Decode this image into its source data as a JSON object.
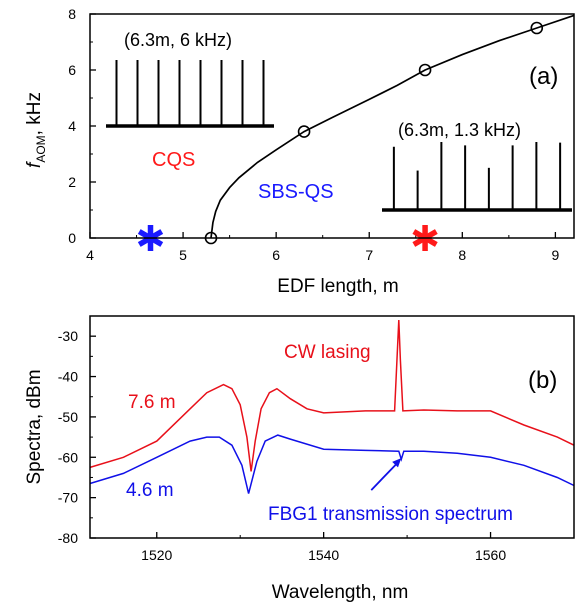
{
  "chart_data": [
    {
      "panel": "a",
      "type": "scatter",
      "panel_label": "(a)",
      "xlabel": "EDF length, m",
      "ylabel_main": "f",
      "ylabel_sub": "AOM",
      "ylabel_unit": ", kHz",
      "xlim": [
        4,
        9.2
      ],
      "ylim": [
        0,
        8
      ],
      "xticks": [
        "4",
        "5",
        "6",
        "7",
        "8",
        "9"
      ],
      "yticks": [
        "0",
        "2",
        "4",
        "6",
        "8"
      ],
      "grid": false,
      "series": [
        {
          "kind": "measured",
          "color": "#000000",
          "x": [
            5.3,
            6.3,
            7.6,
            8.8
          ],
          "y": [
            0,
            3.8,
            6.0,
            7.5
          ]
        },
        {
          "kind": "fit",
          "color": "#000000",
          "x": [
            5.3,
            5.32,
            5.35,
            5.4,
            5.5,
            5.6,
            5.8,
            6.0,
            6.3,
            6.6,
            7.0,
            7.3,
            7.6,
            8.0,
            8.4,
            8.8,
            9.2
          ],
          "y": [
            0,
            0.55,
            0.95,
            1.35,
            1.8,
            2.15,
            2.7,
            3.15,
            3.8,
            4.3,
            4.95,
            5.45,
            6.0,
            6.55,
            7.05,
            7.5,
            7.95
          ]
        }
      ],
      "markers": [
        {
          "symbol": "*",
          "color": "#1a1aff",
          "x": 4.65,
          "y": 0
        },
        {
          "symbol": "*",
          "color": "#ff1a1a",
          "x": 7.6,
          "y": 0
        }
      ],
      "annotations": [
        {
          "text": "CQS",
          "color": "#ff1a1a"
        },
        {
          "text": "SBS-QS",
          "color": "#1a1aff"
        },
        {
          "text": "(6.3m, 6 kHz)",
          "color": "#000000"
        },
        {
          "text": "(6.3m, 1.3 kHz)",
          "color": "#000000"
        }
      ],
      "inset_pulse_trains": [
        {
          "caption": "(6.3m, 6 kHz)",
          "pulse_count": 8,
          "relative_heights": [
            1,
            1,
            1,
            1,
            1,
            1,
            1,
            1
          ]
        },
        {
          "caption": "(6.3m, 1.3 kHz)",
          "pulse_count": 8,
          "relative_heights": [
            0.93,
            0.58,
            1,
            0.95,
            0.62,
            0.95,
            1,
            0.99
          ]
        }
      ]
    },
    {
      "panel": "b",
      "type": "line",
      "panel_label": "(b)",
      "xlabel": "Wavelength, nm",
      "ylabel": "Spectra, dBm",
      "xlim": [
        1512,
        1570
      ],
      "ylim": [
        -80,
        -25
      ],
      "xticks": [
        "1520",
        "1540",
        "1560"
      ],
      "yticks": [
        "-30",
        "-40",
        "-50",
        "-60",
        "-70",
        "-80"
      ],
      "grid": false,
      "series": [
        {
          "name": "7.6 m",
          "color": "#e8101a",
          "x": [
            1512,
            1516,
            1520,
            1524,
            1526,
            1528,
            1529,
            1530,
            1530.8,
            1531.3,
            1531.8,
            1532.5,
            1533.5,
            1534.4,
            1536,
            1538,
            1540,
            1545,
            1548.5,
            1549.0,
            1549.2,
            1549.5,
            1552,
            1556,
            1560,
            1564,
            1568,
            1570
          ],
          "y": [
            -62.5,
            -60,
            -56,
            -48,
            -44,
            -42,
            -43,
            -47,
            -55,
            -63.5,
            -56,
            -48,
            -44,
            -43,
            -45.5,
            -48,
            -49,
            -48.5,
            -48.5,
            -26,
            -36,
            -48.5,
            -48.3,
            -48.5,
            -48.5,
            -52,
            -55,
            -57
          ]
        },
        {
          "name": "4.6 m",
          "color": "#1010e8",
          "x": [
            1512,
            1516,
            1520,
            1524,
            1526,
            1527.5,
            1529,
            1530.2,
            1531.0,
            1532,
            1533,
            1534.5,
            1536,
            1540,
            1545,
            1549.0,
            1549.3,
            1549.6,
            1552,
            1556,
            1560,
            1564,
            1568,
            1570
          ],
          "y": [
            -66.5,
            -64,
            -60,
            -56,
            -55,
            -55,
            -57,
            -62,
            -69,
            -61,
            -56,
            -54.5,
            -55.5,
            -58,
            -58.3,
            -58.5,
            -60.5,
            -58.5,
            -58.5,
            -59,
            -60,
            -62,
            -65,
            -67
          ]
        }
      ],
      "annotations": [
        {
          "text": "CW lasing",
          "color": "#e8101a"
        },
        {
          "text": "7.6 m",
          "color": "#e8101a"
        },
        {
          "text": "4.6 m",
          "color": "#1010e8"
        },
        {
          "text": "FBG1 transmission spectrum",
          "color": "#1010e8"
        }
      ],
      "arrow_target": {
        "x": 1549.3,
        "y": -60.2
      }
    }
  ]
}
